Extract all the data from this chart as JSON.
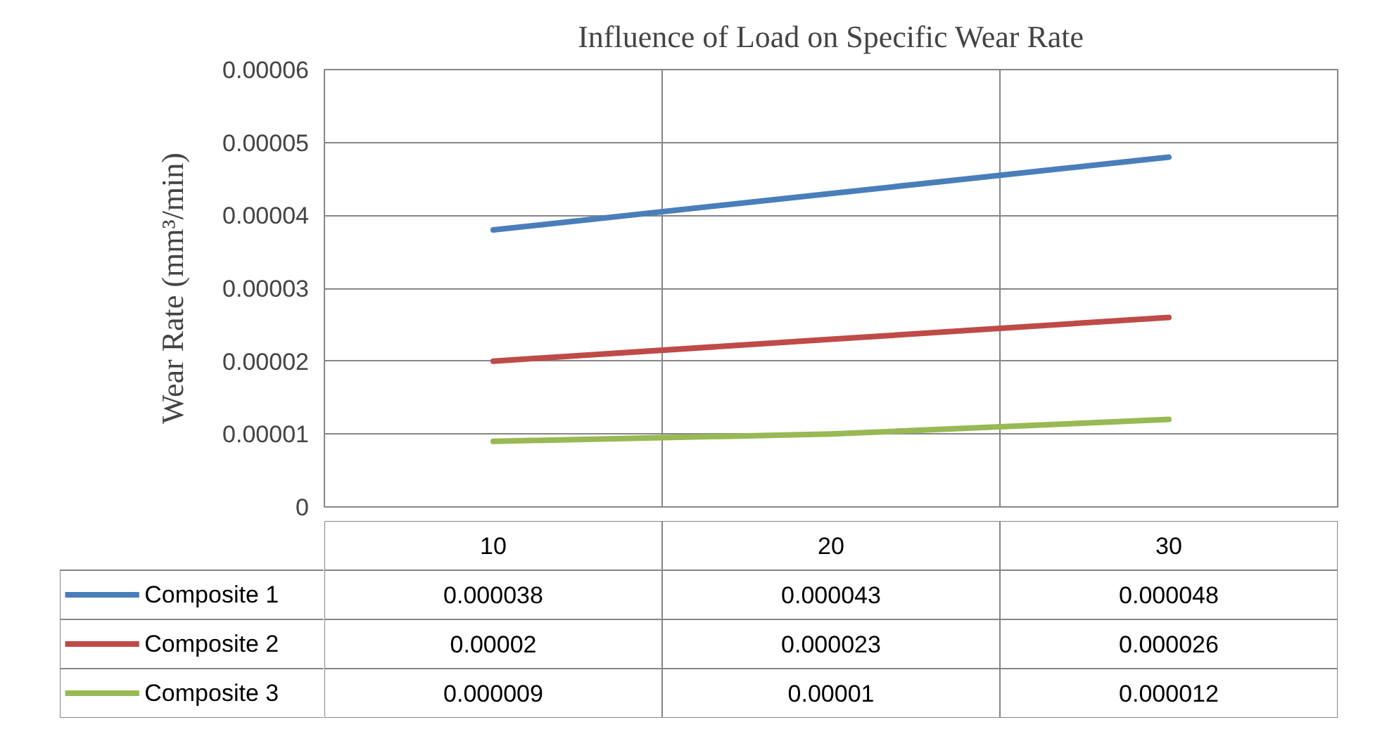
{
  "chart_data": {
    "type": "line",
    "title": "Influence of Load on Specific Wear Rate",
    "ylabel": "Wear Rate (mm³/min)",
    "categories": [
      "10",
      "20",
      "30"
    ],
    "series": [
      {
        "name": "Composite 1",
        "color": "#4a7ebb",
        "values": [
          3.8e-05,
          4.3e-05,
          4.8e-05
        ],
        "value_labels": [
          "0.000038",
          "0.000043",
          "0.000048"
        ]
      },
      {
        "name": "Composite 2",
        "color": "#be4b48",
        "values": [
          2e-05,
          2.3e-05,
          2.6e-05
        ],
        "value_labels": [
          "0.00002",
          "0.000023",
          "0.000026"
        ]
      },
      {
        "name": "Composite 3",
        "color": "#98b954",
        "values": [
          9e-06,
          1e-05,
          1.2e-05
        ],
        "value_labels": [
          "0.000009",
          "0.00001",
          "0.000012"
        ]
      }
    ],
    "ylim": [
      0,
      6e-05
    ],
    "yticks": [
      {
        "value": 0,
        "label": "0"
      },
      {
        "value": 1e-05,
        "label": "0.00001"
      },
      {
        "value": 2e-05,
        "label": "0.00002"
      },
      {
        "value": 3e-05,
        "label": "0.00003"
      },
      {
        "value": 4e-05,
        "label": "0.00004"
      },
      {
        "value": 5e-05,
        "label": "0.00005"
      },
      {
        "value": 6e-05,
        "label": "0.00006"
      }
    ],
    "grid": true,
    "line_style": "solid",
    "legend": "bottom"
  }
}
